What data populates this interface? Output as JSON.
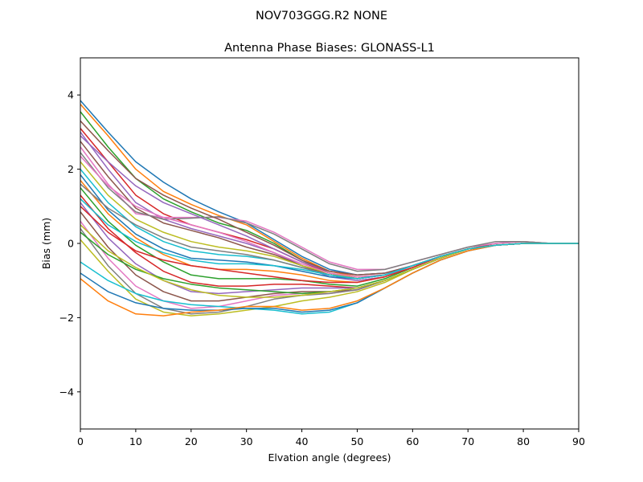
{
  "figure": {
    "suptitle": "NOV703GGG.R2    NONE"
  },
  "chart_data": {
    "type": "line",
    "title": "Antenna Phase Biases: GLONASS-L1",
    "xlabel": "Elvation angle (degrees)",
    "ylabel": "Bias (mm)",
    "xlim": [
      0,
      90
    ],
    "ylim": [
      -5,
      5
    ],
    "xticks": [
      0,
      10,
      20,
      30,
      40,
      50,
      60,
      70,
      80,
      90
    ],
    "yticks": [
      -4,
      -2,
      0,
      2,
      4
    ],
    "xtick_labels": [
      "0",
      "10",
      "20",
      "30",
      "40",
      "50",
      "60",
      "70",
      "80",
      "90"
    ],
    "ytick_labels": [
      "−4",
      "−2",
      "0",
      "2",
      "4"
    ],
    "grid": false,
    "legend": "none",
    "x": [
      0,
      5,
      10,
      15,
      20,
      25,
      30,
      35,
      40,
      45,
      50,
      55,
      60,
      65,
      70,
      75,
      80,
      85,
      90
    ],
    "color_cycle": [
      "#1f77b4",
      "#ff7f0e",
      "#2ca02c",
      "#d62728",
      "#9467bd",
      "#8c564b",
      "#e377c2",
      "#7f7f7f",
      "#bcbd22",
      "#17becf"
    ],
    "series": [
      {
        "values": [
          3.85,
          3.0,
          2.2,
          1.65,
          1.2,
          0.85,
          0.55,
          0.1,
          -0.35,
          -0.7,
          -0.85,
          -0.8,
          -0.6,
          -0.35,
          -0.15,
          -0.05,
          0.0,
          0.0,
          0.0
        ]
      },
      {
        "values": [
          3.75,
          2.9,
          2.0,
          1.4,
          1.05,
          0.75,
          0.5,
          0.05,
          -0.4,
          -0.75,
          -0.9,
          -0.85,
          -0.6,
          -0.35,
          -0.15,
          -0.05,
          0.0,
          0.0,
          0.0
        ]
      },
      {
        "values": [
          3.55,
          2.6,
          1.75,
          1.2,
          0.85,
          0.55,
          0.35,
          0.0,
          -0.45,
          -0.8,
          -0.95,
          -0.85,
          -0.6,
          -0.35,
          -0.15,
          -0.05,
          0.0,
          0.0,
          0.0
        ]
      },
      {
        "values": [
          3.1,
          2.2,
          1.3,
          0.8,
          0.5,
          0.3,
          0.1,
          -0.15,
          -0.5,
          -0.8,
          -0.95,
          -0.85,
          -0.6,
          -0.35,
          -0.15,
          -0.05,
          0.0,
          0.0,
          0.0
        ]
      },
      {
        "values": [
          3.0,
          2.0,
          1.1,
          0.65,
          0.4,
          0.2,
          0.0,
          -0.25,
          -0.6,
          -0.9,
          -1.0,
          -0.9,
          -0.6,
          -0.35,
          -0.15,
          -0.05,
          0.0,
          0.0,
          0.0
        ]
      },
      {
        "values": [
          2.75,
          1.8,
          0.95,
          0.55,
          0.35,
          0.15,
          -0.1,
          -0.3,
          -0.6,
          -0.85,
          -0.95,
          -0.85,
          -0.6,
          -0.35,
          -0.15,
          0.0,
          0.05,
          0.0,
          0.0
        ]
      },
      {
        "values": [
          2.6,
          1.6,
          0.8,
          0.7,
          0.7,
          0.7,
          0.6,
          0.3,
          -0.1,
          -0.5,
          -0.7,
          -0.7,
          -0.5,
          -0.3,
          -0.1,
          0.0,
          0.05,
          0.0,
          0.0
        ]
      },
      {
        "values": [
          2.45,
          1.5,
          0.85,
          0.65,
          0.68,
          0.72,
          0.55,
          0.25,
          -0.15,
          -0.55,
          -0.75,
          -0.7,
          -0.5,
          -0.3,
          -0.1,
          0.05,
          0.05,
          0.0,
          0.0
        ]
      },
      {
        "values": [
          2.2,
          1.3,
          0.65,
          0.3,
          0.05,
          -0.1,
          -0.2,
          -0.35,
          -0.6,
          -0.8,
          -0.95,
          -0.85,
          -0.6,
          -0.35,
          -0.15,
          -0.05,
          0.0,
          0.0,
          0.0
        ]
      },
      {
        "values": [
          2.0,
          1.1,
          0.45,
          0.05,
          -0.2,
          -0.3,
          -0.35,
          -0.45,
          -0.65,
          -0.85,
          -0.95,
          -0.85,
          -0.6,
          -0.35,
          -0.15,
          -0.05,
          0.0,
          0.0,
          0.0
        ]
      },
      {
        "values": [
          1.85,
          0.9,
          0.25,
          -0.15,
          -0.4,
          -0.45,
          -0.5,
          -0.6,
          -0.75,
          -0.9,
          -0.95,
          -0.85,
          -0.6,
          -0.35,
          -0.15,
          -0.05,
          0.0,
          0.0,
          0.0
        ]
      },
      {
        "values": [
          1.7,
          0.8,
          0.15,
          -0.3,
          -0.6,
          -0.7,
          -0.7,
          -0.75,
          -0.85,
          -1.0,
          -1.05,
          -0.9,
          -0.65,
          -0.35,
          -0.15,
          -0.05,
          0.0,
          0.0,
          0.0
        ]
      },
      {
        "values": [
          1.5,
          0.6,
          -0.05,
          -0.5,
          -0.85,
          -0.95,
          -0.95,
          -0.95,
          -1.0,
          -1.1,
          -1.15,
          -0.95,
          -0.65,
          -0.35,
          -0.15,
          -0.05,
          0.0,
          0.0,
          0.0
        ]
      },
      {
        "values": [
          1.3,
          0.4,
          -0.25,
          -0.75,
          -1.05,
          -1.15,
          -1.15,
          -1.1,
          -1.1,
          -1.15,
          -1.2,
          -1.0,
          -0.7,
          -0.4,
          -0.15,
          -0.05,
          0.0,
          0.0,
          0.0
        ]
      },
      {
        "values": [
          1.1,
          0.15,
          -0.55,
          -1.0,
          -1.3,
          -1.35,
          -1.3,
          -1.25,
          -1.2,
          -1.2,
          -1.2,
          -1.0,
          -0.7,
          -0.4,
          -0.15,
          -0.05,
          0.0,
          0.0,
          0.0
        ]
      },
      {
        "values": [
          0.85,
          -0.1,
          -0.85,
          -1.3,
          -1.55,
          -1.55,
          -1.45,
          -1.35,
          -1.3,
          -1.3,
          -1.25,
          -1.0,
          -0.7,
          -0.4,
          -0.15,
          -0.05,
          0.0,
          0.0,
          0.0
        ]
      },
      {
        "values": [
          0.6,
          -0.4,
          -1.15,
          -1.55,
          -1.75,
          -1.7,
          -1.55,
          -1.4,
          -1.35,
          -1.35,
          -1.25,
          -1.0,
          -0.7,
          -0.4,
          -0.15,
          -0.05,
          0.0,
          0.0,
          0.0
        ]
      },
      {
        "values": [
          0.4,
          -0.6,
          -1.35,
          -1.75,
          -1.9,
          -1.85,
          -1.7,
          -1.5,
          -1.4,
          -1.35,
          -1.25,
          -1.0,
          -0.7,
          -0.4,
          -0.15,
          -0.05,
          0.0,
          0.0,
          0.0
        ]
      },
      {
        "values": [
          0.1,
          -0.75,
          -1.5,
          -1.85,
          -1.95,
          -1.9,
          -1.8,
          -1.7,
          -1.55,
          -1.45,
          -1.3,
          -1.05,
          -0.7,
          -0.4,
          -0.15,
          -0.05,
          0.0,
          0.0,
          0.0
        ]
      },
      {
        "values": [
          -0.5,
          -1.0,
          -1.35,
          -1.55,
          -1.65,
          -1.7,
          -1.75,
          -1.8,
          -1.9,
          -1.85,
          -1.6,
          -1.2,
          -0.8,
          -0.45,
          -0.2,
          -0.05,
          0.0,
          0.0,
          0.0
        ]
      },
      {
        "values": [
          -0.8,
          -1.3,
          -1.6,
          -1.75,
          -1.8,
          -1.8,
          -1.75,
          -1.75,
          -1.85,
          -1.8,
          -1.6,
          -1.2,
          -0.8,
          -0.45,
          -0.2,
          -0.05,
          0.0,
          0.0,
          0.0
        ]
      },
      {
        "values": [
          -0.95,
          -1.55,
          -1.9,
          -1.95,
          -1.85,
          -1.8,
          -1.7,
          -1.7,
          -1.8,
          -1.75,
          -1.55,
          -1.2,
          -0.8,
          -0.45,
          -0.2,
          -0.05,
          0.0,
          0.0,
          0.0
        ]
      },
      {
        "values": [
          0.3,
          -0.3,
          -0.7,
          -0.95,
          -1.1,
          -1.2,
          -1.25,
          -1.3,
          -1.35,
          -1.3,
          -1.2,
          -1.0,
          -0.7,
          -0.4,
          -0.15,
          -0.05,
          0.0,
          0.0,
          0.0
        ]
      },
      {
        "values": [
          1.0,
          0.3,
          -0.2,
          -0.45,
          -0.6,
          -0.7,
          -0.8,
          -0.9,
          -1.0,
          -1.05,
          -1.05,
          -0.9,
          -0.65,
          -0.35,
          -0.15,
          -0.05,
          0.0,
          0.0,
          0.0
        ]
      },
      {
        "values": [
          2.9,
          2.2,
          1.55,
          1.1,
          0.8,
          0.5,
          0.2,
          -0.15,
          -0.5,
          -0.75,
          -0.85,
          -0.8,
          -0.6,
          -0.35,
          -0.15,
          -0.05,
          0.0,
          0.0,
          0.0
        ]
      },
      {
        "values": [
          3.3,
          2.5,
          1.75,
          1.3,
          0.95,
          0.65,
          0.3,
          -0.05,
          -0.45,
          -0.75,
          -0.85,
          -0.8,
          -0.6,
          -0.35,
          -0.15,
          -0.05,
          0.0,
          0.0,
          0.0
        ]
      },
      {
        "values": [
          2.35,
          1.55,
          1.0,
          0.7,
          0.5,
          0.3,
          0.05,
          -0.25,
          -0.55,
          -0.8,
          -0.9,
          -0.85,
          -0.6,
          -0.35,
          -0.15,
          -0.05,
          0.0,
          0.0,
          0.0
        ]
      },
      {
        "values": [
          1.6,
          0.95,
          0.5,
          0.15,
          -0.1,
          -0.2,
          -0.3,
          -0.45,
          -0.65,
          -0.85,
          -0.95,
          -0.85,
          -0.6,
          -0.35,
          -0.15,
          -0.05,
          0.0,
          0.0,
          0.0
        ]
      },
      {
        "values": [
          0.5,
          -0.2,
          -0.65,
          -1.0,
          -1.25,
          -1.4,
          -1.45,
          -1.45,
          -1.4,
          -1.3,
          -1.2,
          -1.0,
          -0.7,
          -0.4,
          -0.15,
          -0.05,
          0.0,
          0.0,
          0.0
        ]
      },
      {
        "values": [
          1.2,
          0.5,
          0.05,
          -0.25,
          -0.45,
          -0.55,
          -0.55,
          -0.6,
          -0.7,
          -0.85,
          -0.95,
          -0.85,
          -0.6,
          -0.35,
          -0.15,
          -0.05,
          0.0,
          0.0,
          0.0
        ]
      }
    ]
  }
}
